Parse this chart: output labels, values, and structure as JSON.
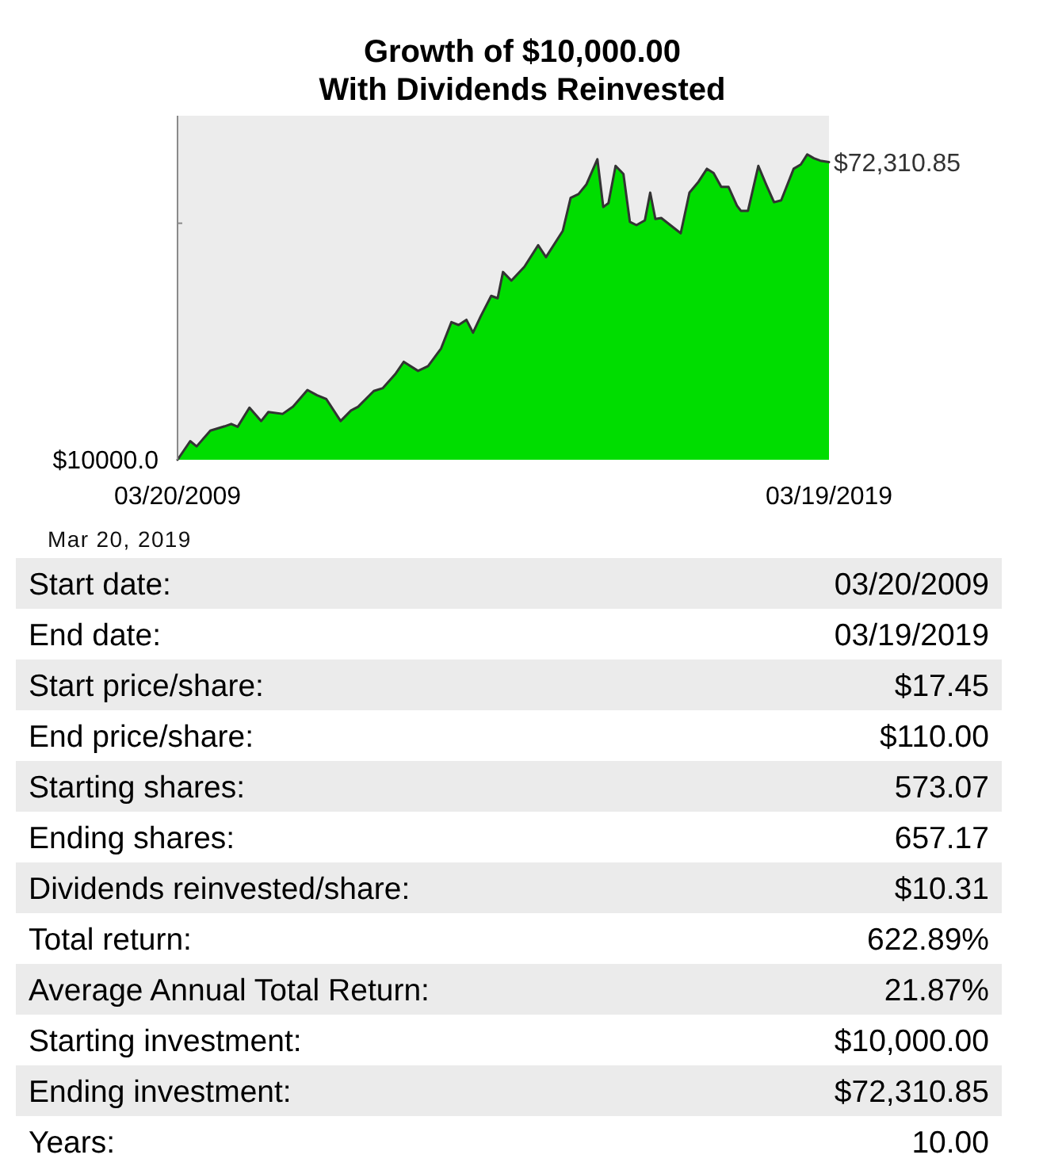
{
  "chart_data": [
    {
      "type": "area",
      "title": "Growth of $10,000.00",
      "subtitle": "With Dividends Reinvested",
      "x": [
        "2009-03-20",
        "2009-05-30",
        "2009-07-05",
        "2009-09-20",
        "2009-12-09",
        "2010-01-15",
        "2010-02-20",
        "2010-04-27",
        "2010-07-02",
        "2010-08-11",
        "2010-10-30",
        "2010-12-27",
        "2011-03-18",
        "2011-05-11",
        "2011-07-02",
        "2011-09-20",
        "2011-11-17",
        "2011-12-27",
        "2012-03-24",
        "2012-05-14",
        "2012-07-22",
        "2012-09-08",
        "2012-11-27",
        "2013-01-22",
        "2013-04-05",
        "2013-06-02",
        "2013-07-12",
        "2013-08-25",
        "2013-10-01",
        "2013-11-14",
        "2014-01-11",
        "2014-02-16",
        "2014-03-18",
        "2014-05-04",
        "2014-07-16",
        "2014-10-01",
        "2014-11-14",
        "2015-02-16",
        "2015-04-01",
        "2015-05-15",
        "2015-06-28",
        "2015-08-29",
        "2015-10-01",
        "2015-10-30",
        "2015-12-09",
        "2016-01-22",
        "2016-02-27",
        "2016-04-04",
        "2016-05-21",
        "2016-06-20",
        "2016-07-19",
        "2016-08-21",
        "2016-12-08",
        "2017-01-26",
        "2017-03-18",
        "2017-05-04",
        "2017-06-10",
        "2017-07-23",
        "2017-09-02",
        "2017-10-19",
        "2017-11-10",
        "2017-12-20",
        "2018-02-16",
        "2018-04-01",
        "2018-05-15",
        "2018-06-24",
        "2018-09-02",
        "2018-10-12",
        "2018-11-17",
        "2018-12-24",
        "2019-01-29",
        "2019-03-19"
      ],
      "series": [
        {
          "color": "#00dd00",
          "values": [
            10000,
            13900,
            12800,
            16100,
            17000,
            17500,
            16900,
            20900,
            18100,
            20000,
            19600,
            21100,
            24600,
            23500,
            22700,
            18100,
            20300,
            21100,
            24400,
            25000,
            27900,
            30500,
            28600,
            29600,
            33300,
            38800,
            38200,
            39300,
            36600,
            40100,
            44300,
            43800,
            49300,
            47500,
            50400,
            54900,
            52400,
            57900,
            64800,
            65600,
            67600,
            72900,
            62900,
            63700,
            71500,
            69800,
            59800,
            59100,
            60100,
            65900,
            60400,
            60600,
            57400,
            65900,
            68200,
            70900,
            70000,
            67100,
            67100,
            63200,
            62100,
            62100,
            71500,
            67600,
            63900,
            64300,
            70900,
            71800,
            73900,
            73100,
            72600,
            72310.85
          ],
          "value_labels": [
            "$10000.0",
            null,
            null,
            null,
            null,
            null,
            null,
            null,
            null,
            null,
            null,
            null,
            null,
            null,
            null,
            null,
            null,
            null,
            null,
            null,
            null,
            null,
            null,
            null,
            null,
            null,
            null,
            null,
            null,
            null,
            null,
            null,
            null,
            null,
            null,
            null,
            null,
            null,
            null,
            null,
            null,
            null,
            null,
            null,
            null,
            null,
            null,
            null,
            null,
            null,
            null,
            null,
            null,
            null,
            null,
            null,
            null,
            null,
            null,
            null,
            null,
            null,
            null,
            null,
            null,
            null,
            null,
            null,
            null,
            null,
            null,
            "$72,310.85"
          ]
        }
      ],
      "xlim": [
        "2009-03-20",
        "2019-03-19"
      ],
      "xticks": [
        {
          "value": "2009-03-20",
          "label": "03/20/2009"
        },
        {
          "value": "2019-03-19",
          "label": "03/19/2019"
        }
      ],
      "ylim": [
        10000,
        82000
      ],
      "yticks": [
        {
          "value": 59500,
          "label": null
        }
      ],
      "tick_labels": "x",
      "annotations": [
        "Mar 20, 2019"
      ]
    },
    {
      "type": "other",
      "annotations": [
        "Start date:",
        "03/20/2009",
        "End date:",
        "03/19/2019",
        "Start price/share:",
        "$17.45",
        "End price/share:",
        "$110.00",
        "Starting shares:",
        "573.07",
        "Ending shares:",
        "657.17",
        "Dividends reinvested/share:",
        "$10.31",
        "Total return:",
        "622.89%",
        "Average Annual Total Return:",
        "21.87%",
        "Starting investment:",
        "$10,000.00",
        "Ending investment:",
        "$72,310.85",
        "Years:",
        "10.00"
      ]
    }
  ]
}
